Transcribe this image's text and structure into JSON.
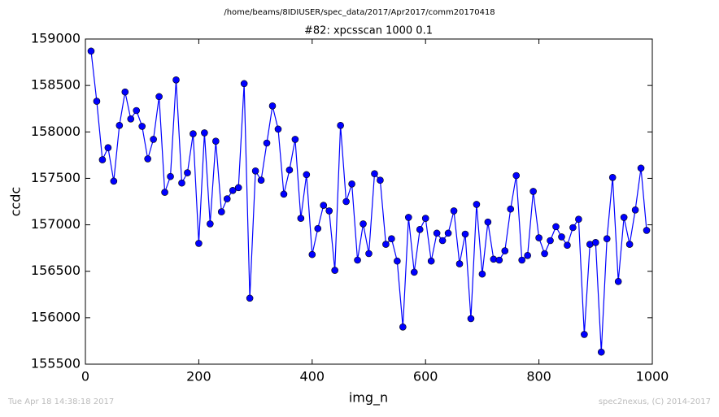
{
  "chart_data": {
    "type": "line",
    "suptitle": "/home/beams/8IDIUSER/spec_data/2017/Apr2017/comm20170418",
    "title": "#82: xpcsscan 1000 0.1",
    "x_label": "img_n",
    "y_label": "ccdc",
    "footer_left": "Tue Apr 18 14:38:18 2017",
    "footer_right": "spec2nexus, (C) 2014-2017",
    "xlim": [
      0,
      1000
    ],
    "xticks": [
      0,
      200,
      400,
      600,
      800,
      1000
    ],
    "ylim": [
      155500,
      159000
    ],
    "yticks": [
      155500,
      156000,
      156500,
      157000,
      157500,
      158000,
      158500,
      159000
    ],
    "x": [
      10,
      20,
      30,
      40,
      50,
      60,
      70,
      80,
      90,
      100,
      110,
      120,
      130,
      140,
      150,
      160,
      170,
      180,
      190,
      200,
      210,
      220,
      230,
      240,
      250,
      260,
      270,
      280,
      290,
      300,
      310,
      320,
      330,
      340,
      350,
      360,
      370,
      380,
      390,
      400,
      410,
      420,
      430,
      440,
      450,
      460,
      470,
      480,
      490,
      500,
      510,
      520,
      530,
      540,
      550,
      560,
      570,
      580,
      590,
      600,
      610,
      620,
      630,
      640,
      650,
      660,
      670,
      680,
      690,
      700,
      710,
      720,
      730,
      740,
      750,
      760,
      770,
      780,
      790,
      800,
      810,
      820,
      830,
      840,
      850,
      860,
      870,
      880,
      890,
      900,
      910,
      920,
      930,
      940,
      950,
      960,
      970,
      980,
      990
    ],
    "series": [
      {
        "color": "#0000ff",
        "values": [
          158870,
          158330,
          157700,
          157830,
          157470,
          158070,
          158430,
          158140,
          158230,
          158060,
          157710,
          157920,
          158380,
          157350,
          157520,
          158560,
          157450,
          157560,
          157980,
          156800,
          157990,
          157010,
          157900,
          157140,
          157280,
          157370,
          157400,
          158520,
          156210,
          157580,
          157480,
          157880,
          158280,
          158030,
          157330,
          157590,
          157920,
          157070,
          157540,
          156680,
          156960,
          157210,
          157150,
          156510,
          158070,
          157250,
          157440,
          156620,
          157010,
          156690,
          157550,
          157480,
          156790,
          156850,
          156610,
          155900,
          157080,
          156490,
          156950,
          157070,
          156610,
          156910,
          156830,
          156910,
          157150,
          156580,
          156900,
          155990,
          157220,
          156470,
          157030,
          156630,
          156620,
          156720,
          157170,
          157530,
          156620,
          156670,
          157360,
          156860,
          156690,
          156830,
          156980,
          156870,
          156780,
          156970,
          157060,
          155820,
          156790,
          156810,
          155630,
          156850,
          157510,
          156390,
          157080,
          156790,
          157160,
          157610,
          156940
        ]
      }
    ]
  }
}
